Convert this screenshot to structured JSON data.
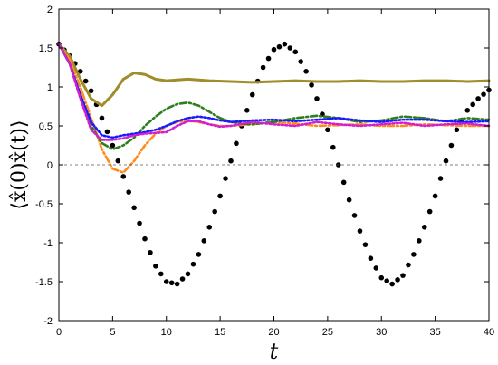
{
  "chart_data": {
    "type": "line",
    "xlabel": "t",
    "ylabel": "⟨x̂(0)x̂(t)⟩",
    "xlim": [
      0,
      40
    ],
    "ylim": [
      -2,
      2
    ],
    "x_ticks": [
      "0",
      "5",
      "10",
      "15",
      "20",
      "25",
      "30",
      "35",
      "40"
    ],
    "y_ticks": [
      "-2",
      "-1.5",
      "-1",
      "-0.5",
      "0",
      "0.5",
      "1",
      "1.5",
      "2"
    ],
    "zero_reference_line": true,
    "grid": false,
    "legend": "none",
    "series": [
      {
        "color": "#000000",
        "style": "dots",
        "x": [
          0,
          1,
          2,
          3,
          4,
          5,
          6,
          7,
          8,
          9,
          10,
          11,
          12,
          13,
          14,
          15,
          16,
          17,
          18,
          19,
          20,
          21,
          22,
          23,
          24,
          25,
          26,
          27,
          28,
          29,
          30,
          31,
          32,
          33,
          34,
          35,
          36,
          37,
          38,
          39,
          40
        ],
        "y": [
          1.55,
          1.4,
          1.2,
          0.95,
          0.6,
          0.25,
          -0.15,
          -0.55,
          -0.95,
          -1.3,
          -1.5,
          -1.53,
          -1.4,
          -1.15,
          -0.8,
          -0.4,
          0.05,
          0.5,
          0.9,
          1.25,
          1.48,
          1.55,
          1.45,
          1.2,
          0.85,
          0.45,
          0.0,
          -0.45,
          -0.85,
          -1.2,
          -1.45,
          -1.53,
          -1.42,
          -1.15,
          -0.8,
          -0.4,
          0.05,
          0.45,
          0.7,
          0.85,
          0.96
        ]
      },
      {
        "color": "#a08c2a",
        "style": "solid",
        "x": [
          0,
          1,
          2,
          3,
          4,
          5,
          6,
          7,
          8,
          9,
          10,
          12,
          14,
          16,
          18,
          20,
          22,
          24,
          26,
          28,
          30,
          32,
          34,
          36,
          38,
          40
        ],
        "y": [
          1.55,
          1.4,
          1.1,
          0.85,
          0.76,
          0.9,
          1.1,
          1.18,
          1.16,
          1.1,
          1.08,
          1.1,
          1.08,
          1.07,
          1.06,
          1.07,
          1.08,
          1.07,
          1.07,
          1.08,
          1.07,
          1.07,
          1.08,
          1.08,
          1.07,
          1.08
        ]
      },
      {
        "color": "#ff8c1a",
        "style": "dash-dot",
        "x": [
          0,
          1,
          2,
          3,
          4,
          5,
          6,
          7,
          8,
          9,
          10,
          11,
          12,
          13,
          14,
          15,
          16,
          18,
          20,
          22,
          24,
          26,
          28,
          30,
          32,
          34,
          36,
          38,
          40
        ],
        "y": [
          1.55,
          1.35,
          1.0,
          0.6,
          0.2,
          -0.05,
          -0.1,
          0.05,
          0.25,
          0.4,
          0.5,
          0.55,
          0.57,
          0.55,
          0.52,
          0.5,
          0.5,
          0.52,
          0.55,
          0.53,
          0.5,
          0.51,
          0.52,
          0.5,
          0.5,
          0.52,
          0.51,
          0.5,
          0.5
        ]
      },
      {
        "color": "#2e7d1e",
        "style": "dash-dot",
        "x": [
          0,
          1,
          2,
          3,
          4,
          5,
          6,
          7,
          8,
          9,
          10,
          11,
          12,
          13,
          14,
          15,
          16,
          17,
          18,
          20,
          22,
          24,
          26,
          28,
          30,
          32,
          34,
          36,
          38,
          40
        ],
        "y": [
          1.55,
          1.3,
          0.9,
          0.5,
          0.28,
          0.2,
          0.25,
          0.35,
          0.5,
          0.62,
          0.72,
          0.78,
          0.8,
          0.76,
          0.68,
          0.6,
          0.55,
          0.53,
          0.52,
          0.55,
          0.6,
          0.63,
          0.6,
          0.55,
          0.57,
          0.62,
          0.6,
          0.56,
          0.6,
          0.58
        ]
      },
      {
        "color": "#1a1aff",
        "style": "dotted",
        "x": [
          0,
          1,
          2,
          3,
          4,
          5,
          6,
          7,
          8,
          9,
          10,
          11,
          12,
          13,
          14,
          15,
          16,
          18,
          20,
          22,
          24,
          26,
          28,
          30,
          32,
          34,
          36,
          38,
          40
        ],
        "y": [
          1.55,
          1.3,
          0.9,
          0.55,
          0.38,
          0.35,
          0.38,
          0.4,
          0.42,
          0.45,
          0.5,
          0.56,
          0.6,
          0.62,
          0.6,
          0.57,
          0.55,
          0.57,
          0.58,
          0.56,
          0.58,
          0.6,
          0.57,
          0.55,
          0.58,
          0.58,
          0.56,
          0.55,
          0.56
        ]
      },
      {
        "color": "#d21ed2",
        "style": "dotted",
        "x": [
          0,
          1,
          2,
          3,
          4,
          5,
          6,
          7,
          8,
          9,
          10,
          11,
          12,
          13,
          14,
          15,
          16,
          18,
          20,
          22,
          24,
          26,
          28,
          30,
          32,
          34,
          36,
          38,
          40
        ],
        "y": [
          1.55,
          1.3,
          0.85,
          0.45,
          0.32,
          0.32,
          0.34,
          0.38,
          0.4,
          0.41,
          0.42,
          0.5,
          0.56,
          0.56,
          0.52,
          0.49,
          0.5,
          0.55,
          0.52,
          0.5,
          0.55,
          0.52,
          0.5,
          0.52,
          0.54,
          0.5,
          0.52,
          0.53,
          0.5
        ]
      }
    ]
  }
}
